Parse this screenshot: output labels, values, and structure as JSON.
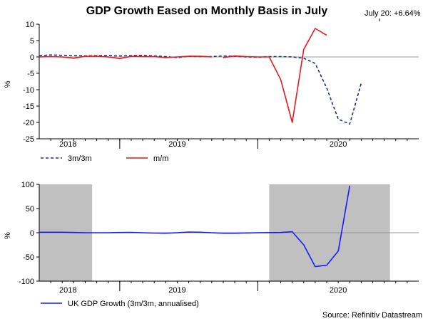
{
  "title": "GDP Growth Eased on Monthly Basis in July",
  "annotation": "July 20: +6.64%",
  "source": "Source: Refinitiv Datastream",
  "colors": {
    "red": "#e41a1c",
    "navy": "#1f2d8a",
    "blue": "#1a1aff",
    "shade": "#c0c0c0",
    "zero": "#999999"
  },
  "chart_data": [
    {
      "type": "line",
      "title": "GDP Growth Eased on Monthly Basis in July",
      "ylabel": "%",
      "ylim": [
        -25,
        10
      ],
      "yticks": [
        10,
        5,
        0,
        -5,
        -10,
        -15,
        -20,
        -25
      ],
      "xlim": [
        0,
        33
      ],
      "year_labels": [
        {
          "label": "2018",
          "x": 2.5
        },
        {
          "label": "2019",
          "x": 12
        },
        {
          "label": "2020",
          "x": 26
        }
      ],
      "year_dividers": [
        7,
        19
      ],
      "x": [
        0,
        1,
        2,
        3,
        4,
        5,
        6,
        7,
        8,
        9,
        10,
        11,
        12,
        13,
        14,
        15,
        15.5,
        16,
        17,
        18,
        19,
        20,
        21,
        22,
        23,
        24,
        25,
        26,
        27,
        28,
        29,
        30
      ],
      "series": [
        {
          "name": "3m/3m",
          "style": "dashed",
          "color": "#1f2d8a",
          "values": [
            0.4,
            0.6,
            0.5,
            0.4,
            0.3,
            0.4,
            0.4,
            0.3,
            0.4,
            0.5,
            0.3,
            0.1,
            -0.2,
            0.2,
            0.1,
            0.1,
            0.2,
            0.3,
            0.2,
            0.0,
            -0.1,
            0.1,
            0.1,
            0.0,
            -0.4,
            -2.0,
            -9.5,
            -19.0,
            -20.5,
            -8.0,
            null,
            null
          ]
        },
        {
          "name": "m/m",
          "style": "solid",
          "color": "#e41a1c",
          "values": [
            0.0,
            0.1,
            0.0,
            -0.4,
            0.2,
            0.2,
            0.0,
            -0.5,
            0.2,
            0.1,
            0.1,
            -0.2,
            0.0,
            0.2,
            0.2,
            0.0,
            null,
            -0.2,
            0.3,
            0.1,
            0.0,
            0.0,
            -6.9,
            -20.0,
            2.3,
            8.7,
            6.6,
            null,
            null,
            null,
            null,
            null
          ]
        }
      ],
      "legend": [
        "3m/3m",
        "m/m"
      ]
    },
    {
      "type": "line",
      "ylabel": "%",
      "ylim": [
        -100,
        100
      ],
      "yticks": [
        100,
        50,
        0,
        -50,
        -100
      ],
      "xlim": [
        0,
        33
      ],
      "year_labels": [
        {
          "label": "2018",
          "x": 2.5
        },
        {
          "label": "2019",
          "x": 12
        },
        {
          "label": "2020",
          "x": 26
        }
      ],
      "year_dividers": [
        7,
        19
      ],
      "shaded_ranges": [
        [
          0,
          4.6
        ],
        [
          20,
          30.5
        ]
      ],
      "x": [
        0,
        1,
        2,
        3,
        4,
        5,
        6,
        7,
        8,
        9,
        10,
        11,
        12,
        13,
        14,
        15,
        16,
        17,
        18,
        19,
        20,
        21,
        22,
        23,
        24,
        25,
        26,
        27
      ],
      "series": [
        {
          "name": "UK GDP Growth (3m/3m, annualised)",
          "style": "solid",
          "color": "#1a1aff",
          "values": [
            1,
            1,
            1,
            0.5,
            0,
            0,
            0,
            0.5,
            0.8,
            0,
            -0.8,
            -1,
            0,
            1.5,
            1,
            0,
            -1,
            -1,
            -0.5,
            0,
            0.3,
            0.5,
            2,
            -25,
            -70,
            -67,
            -38,
            97
          ]
        }
      ],
      "legend": [
        "UK GDP Growth (3m/3m, annualised)"
      ]
    }
  ]
}
